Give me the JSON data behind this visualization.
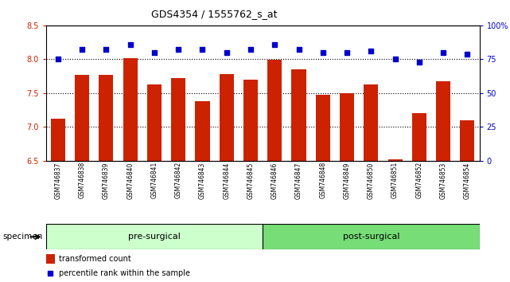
{
  "title": "GDS4354 / 1555762_s_at",
  "samples": [
    "GSM746837",
    "GSM746838",
    "GSM746839",
    "GSM746840",
    "GSM746841",
    "GSM746842",
    "GSM746843",
    "GSM746844",
    "GSM746845",
    "GSM746846",
    "GSM746847",
    "GSM746848",
    "GSM746849",
    "GSM746850",
    "GSM746851",
    "GSM746852",
    "GSM746853",
    "GSM746854"
  ],
  "bar_values": [
    7.12,
    7.77,
    7.77,
    8.02,
    7.63,
    7.72,
    7.38,
    7.78,
    7.7,
    7.99,
    7.85,
    7.47,
    7.5,
    7.63,
    6.52,
    7.2,
    7.68,
    7.1
  ],
  "percentile_values": [
    75,
    82,
    82,
    86,
    80,
    82,
    82,
    80,
    82,
    86,
    82,
    80,
    80,
    81,
    75,
    73,
    80,
    79
  ],
  "bar_color": "#cc2200",
  "dot_color": "#0000cc",
  "ylim_left": [
    6.5,
    8.5
  ],
  "ylim_right": [
    0,
    100
  ],
  "yticks_left": [
    6.5,
    7.0,
    7.5,
    8.0,
    8.5
  ],
  "yticks_right": [
    0,
    25,
    50,
    75,
    100
  ],
  "grid_values": [
    7.0,
    7.5,
    8.0
  ],
  "pre_surgical_count": 9,
  "post_surgical_count": 9,
  "xlabel": "specimen",
  "legend_bar_label": "transformed count",
  "legend_dot_label": "percentile rank within the sample",
  "group_labels": [
    "pre-surgical",
    "post-surgical"
  ],
  "group_colors": [
    "#ccffcc",
    "#77dd77"
  ],
  "background_color": "#ffffff",
  "tick_area_color": "#d8d8d8",
  "tick_label_color_left": "#cc2200",
  "tick_label_color_right": "#0000cc"
}
